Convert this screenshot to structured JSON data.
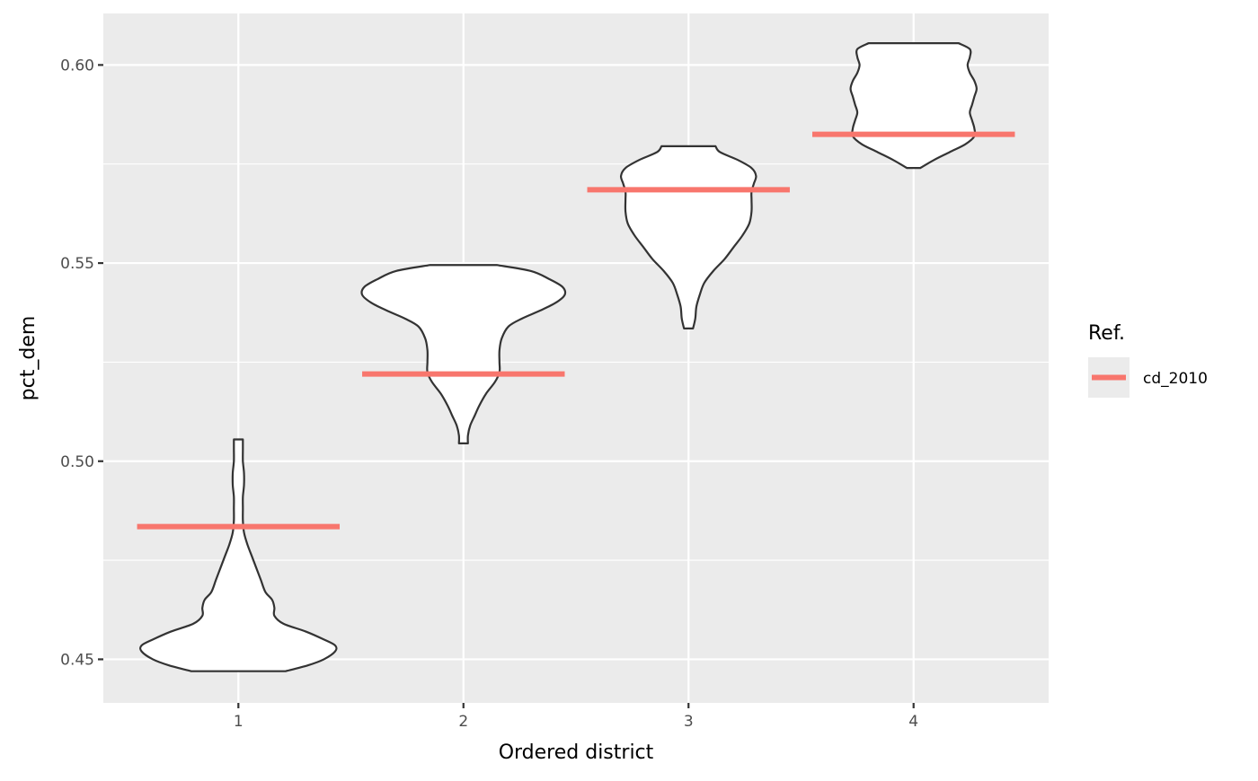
{
  "chart_data": {
    "type": "violin",
    "title": "",
    "xlabel": "Ordered district",
    "ylabel": "pct_dem",
    "categories": [
      "1",
      "2",
      "3",
      "4"
    ],
    "ylim": [
      0.439,
      0.613
    ],
    "yticks": [
      0.45,
      0.5,
      0.55,
      0.6
    ],
    "ytick_labels": [
      "0.45",
      "0.50",
      "0.55",
      "0.60"
    ],
    "grid": true,
    "legend": {
      "title": "Ref.",
      "position": "right",
      "entries": [
        {
          "name": "cd_2010",
          "color": "#F8766D"
        }
      ]
    },
    "reference_series": {
      "name": "cd_2010",
      "color": "#F8766D",
      "values": [
        0.4835,
        0.522,
        0.5685,
        0.5825
      ]
    },
    "violins": [
      {
        "category": "1",
        "min": 0.447,
        "max": 0.5055,
        "profile": [
          [
            0.447,
            0.21
          ],
          [
            0.4485,
            0.31
          ],
          [
            0.45,
            0.38
          ],
          [
            0.452,
            0.43
          ],
          [
            0.4535,
            0.43
          ],
          [
            0.455,
            0.38
          ],
          [
            0.457,
            0.3
          ],
          [
            0.459,
            0.2
          ],
          [
            0.461,
            0.16
          ],
          [
            0.463,
            0.16
          ],
          [
            0.465,
            0.15
          ],
          [
            0.467,
            0.12
          ],
          [
            0.47,
            0.1
          ],
          [
            0.473,
            0.08
          ],
          [
            0.476,
            0.06
          ],
          [
            0.479,
            0.04
          ],
          [
            0.482,
            0.025
          ],
          [
            0.485,
            0.02
          ],
          [
            0.488,
            0.02
          ],
          [
            0.491,
            0.02
          ],
          [
            0.494,
            0.025
          ],
          [
            0.497,
            0.025
          ],
          [
            0.5,
            0.02
          ],
          [
            0.503,
            0.02
          ],
          [
            0.5055,
            0.02
          ]
        ]
      },
      {
        "category": "2",
        "min": 0.5045,
        "max": 0.5495,
        "profile": [
          [
            0.5045,
            0.02
          ],
          [
            0.5065,
            0.02
          ],
          [
            0.509,
            0.03
          ],
          [
            0.5115,
            0.05
          ],
          [
            0.514,
            0.07
          ],
          [
            0.517,
            0.1
          ],
          [
            0.52,
            0.14
          ],
          [
            0.5225,
            0.16
          ],
          [
            0.525,
            0.16
          ],
          [
            0.528,
            0.16
          ],
          [
            0.531,
            0.17
          ],
          [
            0.534,
            0.2
          ],
          [
            0.536,
            0.26
          ],
          [
            0.538,
            0.34
          ],
          [
            0.54,
            0.41
          ],
          [
            0.542,
            0.45
          ],
          [
            0.544,
            0.44
          ],
          [
            0.546,
            0.38
          ],
          [
            0.548,
            0.3
          ],
          [
            0.5495,
            0.15
          ]
        ]
      },
      {
        "category": "3",
        "min": 0.5335,
        "max": 0.5795,
        "profile": [
          [
            0.5335,
            0.02
          ],
          [
            0.536,
            0.03
          ],
          [
            0.539,
            0.035
          ],
          [
            0.542,
            0.05
          ],
          [
            0.545,
            0.07
          ],
          [
            0.548,
            0.11
          ],
          [
            0.551,
            0.16
          ],
          [
            0.554,
            0.2
          ],
          [
            0.557,
            0.24
          ],
          [
            0.56,
            0.27
          ],
          [
            0.563,
            0.28
          ],
          [
            0.566,
            0.28
          ],
          [
            0.568,
            0.28
          ],
          [
            0.57,
            0.29
          ],
          [
            0.572,
            0.3
          ],
          [
            0.574,
            0.28
          ],
          [
            0.576,
            0.22
          ],
          [
            0.578,
            0.14
          ],
          [
            0.5795,
            0.12
          ]
        ]
      },
      {
        "category": "4",
        "min": 0.574,
        "max": 0.6055,
        "profile": [
          [
            0.574,
            0.03
          ],
          [
            0.576,
            0.09
          ],
          [
            0.578,
            0.16
          ],
          [
            0.58,
            0.23
          ],
          [
            0.582,
            0.27
          ],
          [
            0.584,
            0.27
          ],
          [
            0.586,
            0.26
          ],
          [
            0.588,
            0.25
          ],
          [
            0.59,
            0.26
          ],
          [
            0.592,
            0.27
          ],
          [
            0.594,
            0.28
          ],
          [
            0.596,
            0.27
          ],
          [
            0.598,
            0.25
          ],
          [
            0.6,
            0.24
          ],
          [
            0.602,
            0.25
          ],
          [
            0.604,
            0.25
          ],
          [
            0.6055,
            0.2
          ]
        ]
      }
    ]
  }
}
